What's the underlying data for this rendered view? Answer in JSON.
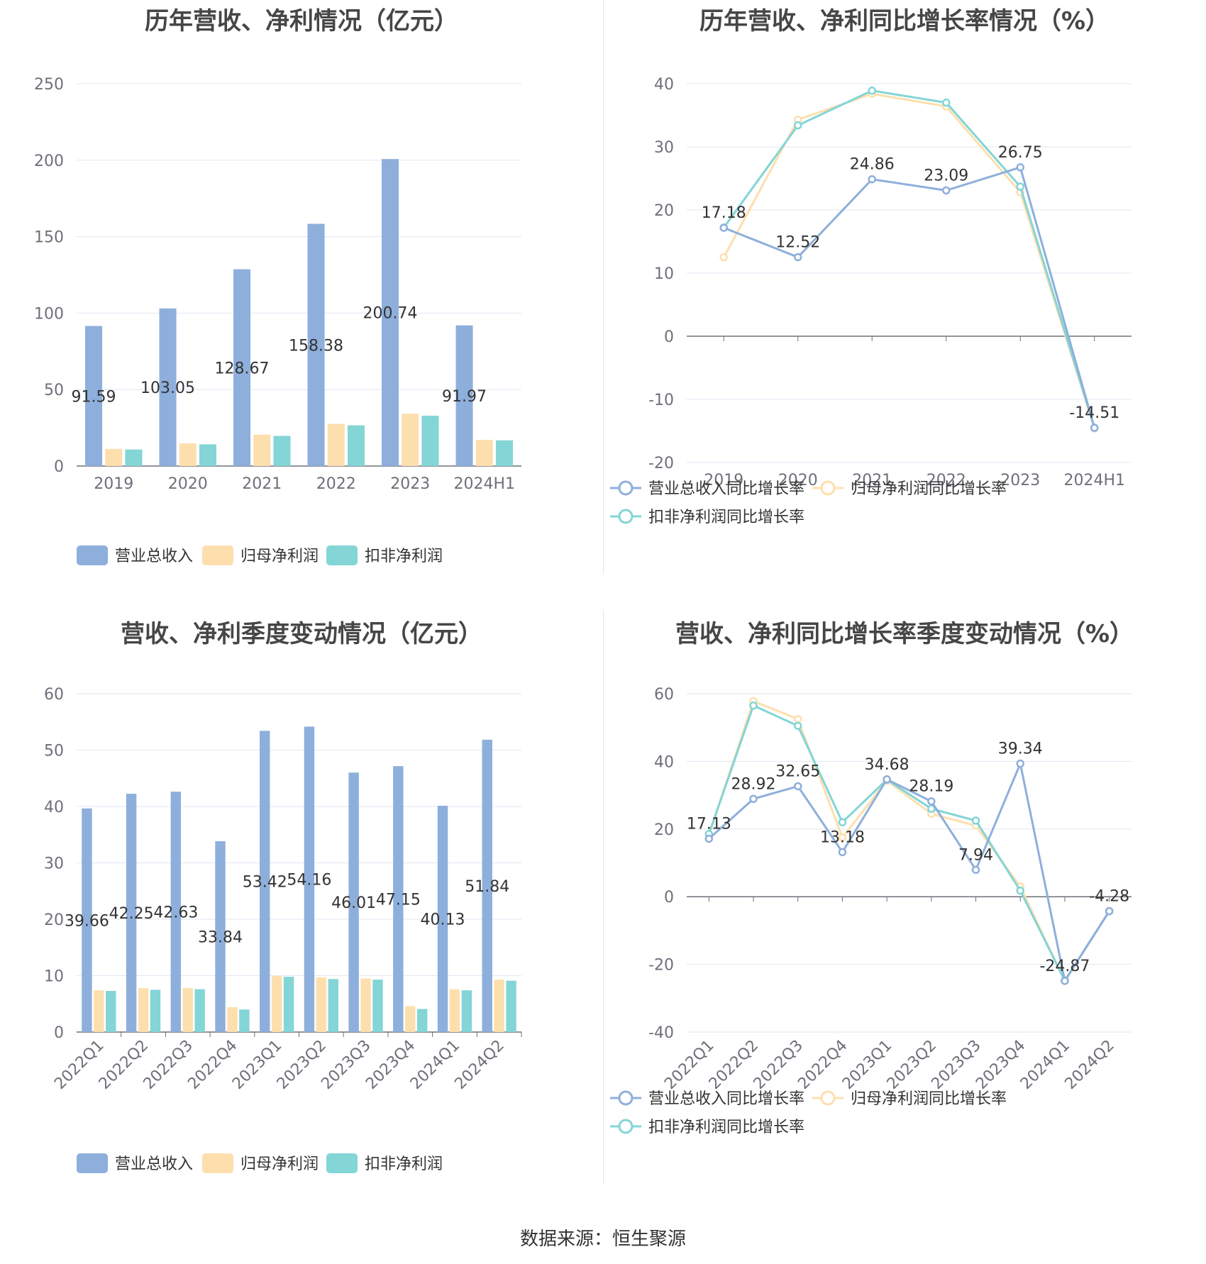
{
  "colors": {
    "revenue": "#8eafdb",
    "net_profit": "#fddfae",
    "deducted_profit": "#83d5d6",
    "grid": "#e0e6f1",
    "axis": "#6e7079"
  },
  "legend": {
    "bar": [
      "营业总收入",
      "归母净利润",
      "扣非净利润"
    ],
    "line": [
      "营业总收入同比增长率",
      "归母净利润同比增长率",
      "扣非净利润同比增长率"
    ]
  },
  "source": "数据来源：恒生聚源",
  "chart_data": [
    {
      "id": "annual-bar",
      "type": "bar",
      "title": "历年营收、净利情况（亿元）",
      "categories": [
        "2019",
        "2020",
        "2021",
        "2022",
        "2023",
        "2024H1"
      ],
      "ylim": [
        0,
        250
      ],
      "yticks": [
        0,
        50,
        100,
        150,
        200,
        250
      ],
      "grid": true,
      "legend_position": "bottom",
      "series": [
        {
          "name": "营业总收入",
          "values": [
            91.59,
            103.05,
            128.67,
            158.38,
            200.74,
            91.97
          ],
          "labels": [
            "91.59",
            "103.05",
            "128.67",
            "158.38",
            "200.74",
            "91.97"
          ]
        },
        {
          "name": "归母净利润",
          "values": [
            11.2,
            14.8,
            20.5,
            27.6,
            34.2,
            17.1
          ],
          "labels": []
        },
        {
          "name": "扣非净利润",
          "values": [
            10.8,
            14.2,
            19.7,
            26.6,
            32.9,
            16.8
          ],
          "labels": []
        }
      ]
    },
    {
      "id": "annual-line",
      "type": "line",
      "title": "历年营收、净利同比增长率情况（%）",
      "categories": [
        "2019",
        "2020",
        "2021",
        "2022",
        "2023",
        "2024H1"
      ],
      "ylim": [
        -20,
        40
      ],
      "yticks": [
        -20,
        -10,
        0,
        10,
        20,
        30,
        40
      ],
      "grid": true,
      "legend_position": "bottom",
      "series": [
        {
          "name": "营业总收入同比增长率",
          "values": [
            17.18,
            12.52,
            24.86,
            23.09,
            26.75,
            -14.51
          ],
          "labels": [
            "17.18",
            "12.52",
            "24.86",
            "23.09",
            "26.75",
            "-14.51"
          ]
        },
        {
          "name": "归母净利润同比增长率",
          "values": [
            12.5,
            34.3,
            38.4,
            36.4,
            22.8,
            -14.6
          ],
          "labels": []
        },
        {
          "name": "扣非净利润同比增长率",
          "values": [
            17.2,
            33.4,
            38.9,
            37.0,
            23.7,
            -14.5
          ],
          "labels": []
        }
      ]
    },
    {
      "id": "quarter-bar",
      "type": "bar",
      "title": "营收、净利季度变动情况（亿元）",
      "categories": [
        "2022Q1",
        "2022Q2",
        "2022Q3",
        "2022Q4",
        "2023Q1",
        "2023Q2",
        "2023Q3",
        "2023Q4",
        "2024Q1",
        "2024Q2"
      ],
      "ylim": [
        0,
        60
      ],
      "yticks": [
        0,
        10,
        20,
        30,
        40,
        50,
        60
      ],
      "grid": true,
      "legend_position": "bottom",
      "series": [
        {
          "name": "营业总收入",
          "values": [
            39.66,
            42.25,
            42.63,
            33.84,
            53.42,
            54.16,
            46.01,
            47.15,
            40.13,
            51.84
          ],
          "labels": [
            "39.66",
            "42.25",
            "42.63",
            "33.84",
            "53.42",
            "54.16",
            "46.01",
            "47.15",
            "40.13",
            "51.84"
          ]
        },
        {
          "name": "归母净利润",
          "values": [
            7.4,
            7.8,
            7.8,
            4.4,
            10.0,
            9.7,
            9.5,
            4.6,
            7.6,
            9.3
          ],
          "labels": []
        },
        {
          "name": "扣非净利润",
          "values": [
            7.3,
            7.5,
            7.6,
            4.0,
            9.8,
            9.4,
            9.3,
            4.1,
            7.4,
            9.1
          ],
          "labels": []
        }
      ]
    },
    {
      "id": "quarter-line",
      "type": "line",
      "title": "营收、净利同比增长率季度变动情况（%）",
      "categories": [
        "2022Q1",
        "2022Q2",
        "2022Q3",
        "2022Q4",
        "2023Q1",
        "2023Q2",
        "2023Q3",
        "2023Q4",
        "2024Q1",
        "2024Q2"
      ],
      "ylim": [
        -40,
        60
      ],
      "yticks": [
        -40,
        -20,
        0,
        20,
        40,
        60
      ],
      "grid": true,
      "legend_position": "bottom",
      "series": [
        {
          "name": "营业总收入同比增长率",
          "values": [
            17.13,
            28.92,
            32.65,
            13.18,
            34.68,
            28.19,
            7.94,
            39.34,
            -24.87,
            -4.28
          ],
          "labels": [
            "17.13",
            "28.92",
            "32.65",
            "13.18",
            "34.68",
            "28.19",
            "7.94",
            "39.34",
            "-24.87",
            "-4.28"
          ]
        },
        {
          "name": "归母净利润同比增长率",
          "values": [
            18.5,
            57.8,
            52.5,
            17.5,
            34.3,
            24.5,
            21.0,
            3.0,
            -24.9,
            -4.2
          ],
          "labels": []
        },
        {
          "name": "扣非净利润同比增长率",
          "values": [
            18.5,
            56.5,
            50.5,
            22.0,
            34.6,
            26.0,
            22.5,
            1.8,
            -24.8,
            -4.3
          ],
          "labels": []
        }
      ]
    }
  ]
}
